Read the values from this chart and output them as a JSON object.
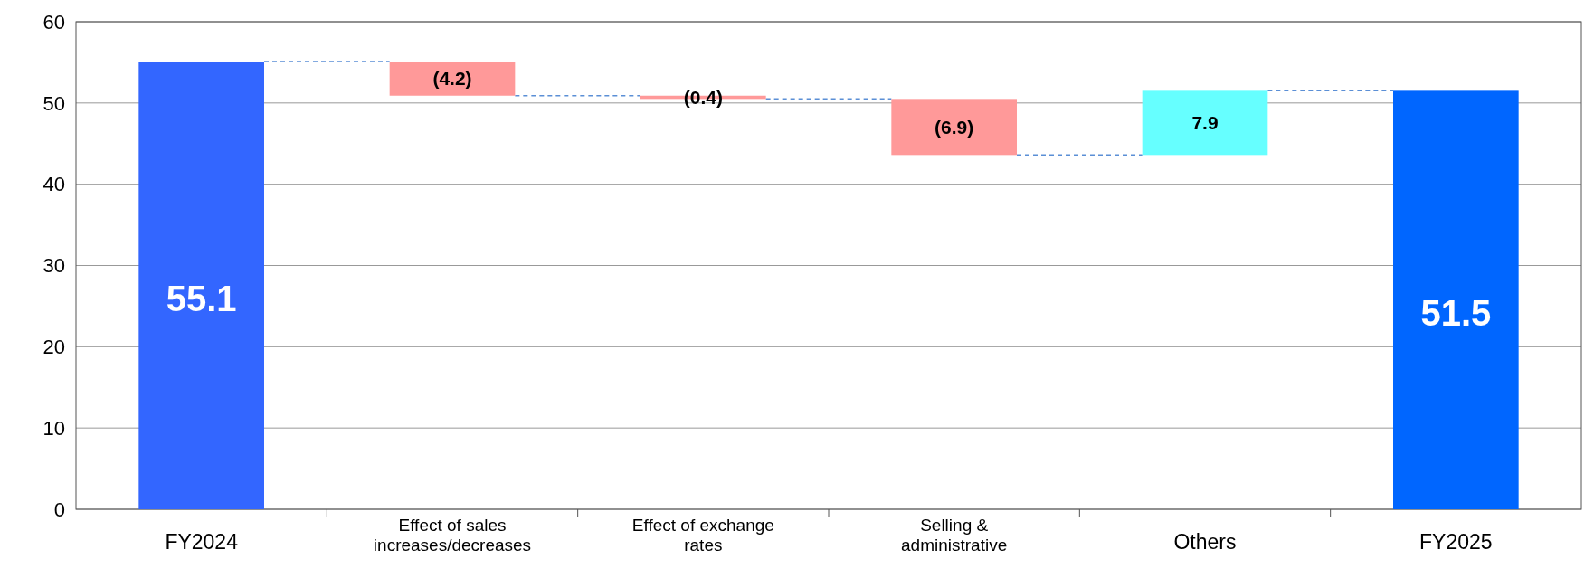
{
  "chart_data": {
    "type": "bar",
    "categories": [
      "FY2024",
      "Effect of sales increases/decreases",
      "Effect of exchange rates",
      "Selling & administrative",
      "Others",
      "FY2025"
    ],
    "values": [
      55.1,
      -4.2,
      -0.4,
      -6.9,
      7.9,
      51.5
    ],
    "base": [
      0,
      55.1,
      50.9,
      50.5,
      43.6,
      0
    ],
    "colors": [
      "#3366ff",
      "#ff9999",
      "#ff9999",
      "#ff9999",
      "#66ffff",
      "#0066ff"
    ],
    "value_labels": [
      "55.1",
      "(4.2)",
      "(0.4)",
      "(6.9)",
      "7.9",
      "51.5"
    ],
    "ylim": [
      0,
      60
    ],
    "yticks": [
      0,
      10,
      20,
      30,
      40,
      50,
      60
    ],
    "grid": "y"
  }
}
